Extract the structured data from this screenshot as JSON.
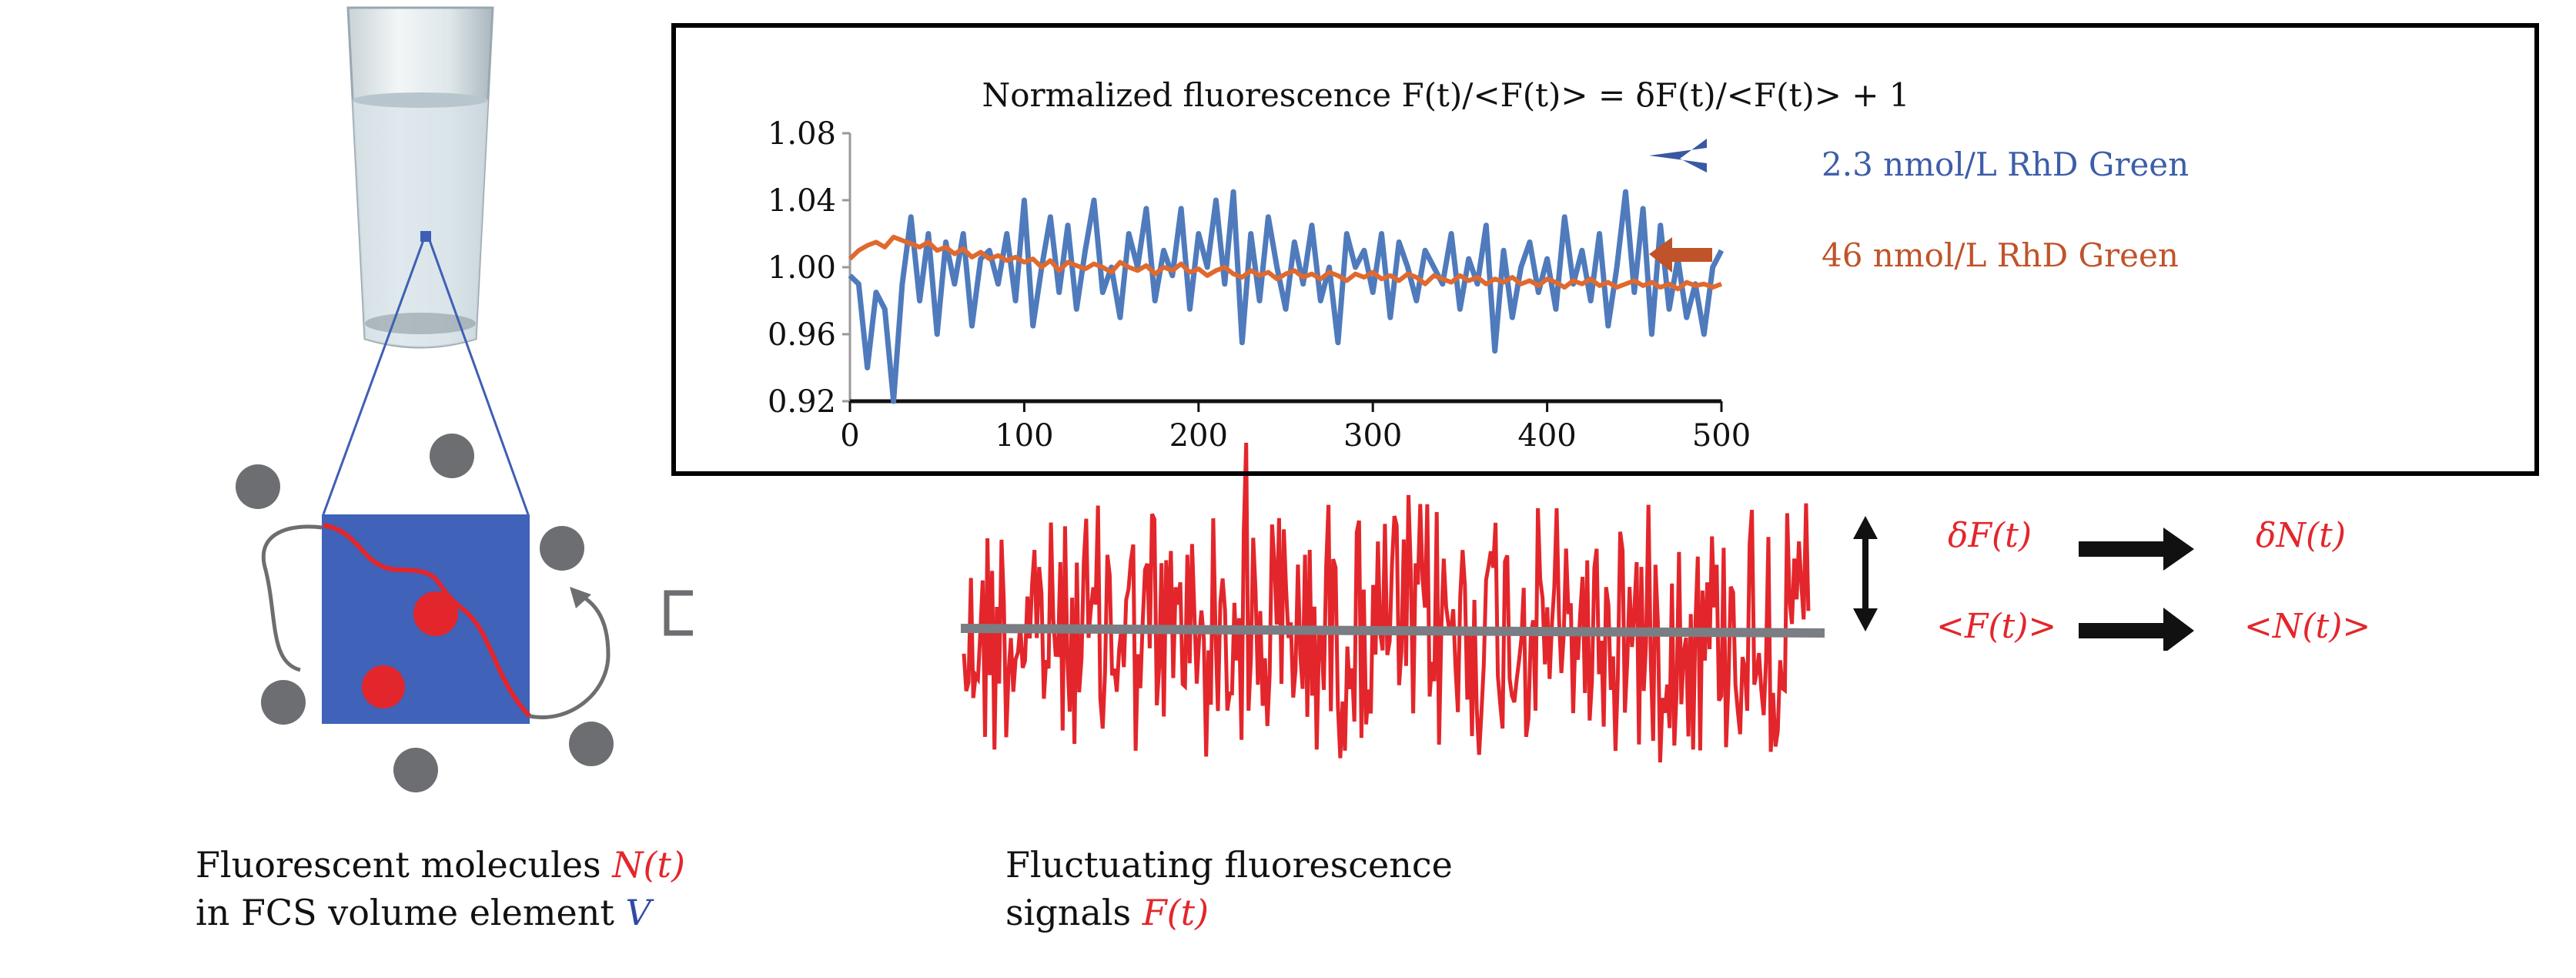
{
  "left_caption": {
    "line1_text": "Fluorescent molecules ",
    "line1_symbol": "N(t)",
    "line2_text": "in FCS volume element ",
    "line2_symbol": "V"
  },
  "middle_caption": {
    "line1_text": "Fluctuating  fluorescence",
    "line2_text": "signals ",
    "line2_symbol": "F(t)"
  },
  "relations": {
    "delta_f": "δF(t)",
    "delta_n": "δN(t)",
    "mean_f": "<F(t)>",
    "mean_n": "<N(t)>"
  },
  "colors": {
    "blue_series": "#4f7bbd",
    "orange_series": "#e0692e",
    "signal": "#e3262b",
    "volume": "#3f5fb5",
    "molecule": "#6d6e71"
  },
  "chart_data": {
    "type": "line",
    "title": "Normalized fluorescence F(t)/<F(t)> = δF(t)/<F(t)> + 1",
    "xlabel": "",
    "ylabel": "",
    "xlim": [
      0,
      500
    ],
    "ylim": [
      0.92,
      1.08
    ],
    "x_ticks": [
      "0",
      "100",
      "200",
      "300",
      "400",
      "500"
    ],
    "y_ticks": [
      "1.08",
      "1.04",
      "1.00",
      "0.96",
      "0.92"
    ],
    "x_step": 5,
    "legend_placement": "right",
    "series": [
      {
        "name": "2.3 nmol/L RhD Green",
        "color": "#4f7bbd",
        "values": [
          0.995,
          0.99,
          0.94,
          0.985,
          0.975,
          0.92,
          0.99,
          1.03,
          0.98,
          1.02,
          0.96,
          1.015,
          0.99,
          1.02,
          0.965,
          1.005,
          1.01,
          0.99,
          1.02,
          0.98,
          1.04,
          0.965,
          1.0,
          1.03,
          0.985,
          1.025,
          0.975,
          1.01,
          1.04,
          0.985,
          1.0,
          0.97,
          1.02,
          1.0,
          1.035,
          0.98,
          1.01,
          0.995,
          1.035,
          0.975,
          1.02,
          1.0,
          1.04,
          0.99,
          1.045,
          0.955,
          1.02,
          0.98,
          1.03,
          1.0,
          0.975,
          1.015,
          0.99,
          1.025,
          0.98,
          1.0,
          0.955,
          1.02,
          1.0,
          1.01,
          0.985,
          1.02,
          0.97,
          1.015,
          1.0,
          0.98,
          1.01,
          1.0,
          0.99,
          1.02,
          0.975,
          1.005,
          0.99,
          1.025,
          0.95,
          1.01,
          0.97,
          1.0,
          1.015,
          0.985,
          1.005,
          0.975,
          1.03,
          0.99,
          1.01,
          0.98,
          1.02,
          0.965,
          1.0,
          1.045,
          0.985,
          1.035,
          0.96,
          1.025,
          0.975,
          1.005,
          0.97,
          0.99,
          0.96,
          1.0,
          1.01
        ]
      },
      {
        "name": "46 nmol/L RhD Green",
        "color": "#e0692e",
        "values": [
          1.005,
          1.01,
          1.013,
          1.015,
          1.012,
          1.018,
          1.016,
          1.014,
          1.012,
          1.015,
          1.01,
          1.012,
          1.008,
          1.011,
          1.006,
          1.009,
          1.005,
          1.007,
          1.004,
          1.006,
          1.003,
          1.005,
          1.0,
          1.004,
          0.998,
          1.003,
          1.001,
          0.999,
          1.002,
          1.0,
          0.997,
          1.003,
          1.0,
          0.998,
          1.001,
          0.996,
          1.0,
          0.998,
          1.002,
          0.997,
          0.999,
          0.995,
          0.998,
          1.0,
          0.996,
          0.994,
          0.998,
          0.995,
          0.997,
          0.993,
          0.996,
          0.998,
          0.994,
          0.996,
          0.993,
          0.997,
          0.995,
          0.992,
          0.996,
          0.994,
          0.997,
          0.993,
          0.995,
          0.992,
          0.996,
          0.994,
          0.99,
          0.995,
          0.993,
          0.991,
          0.995,
          0.992,
          0.994,
          0.99,
          0.993,
          0.991,
          0.994,
          0.99,
          0.992,
          0.989,
          0.993,
          0.991,
          0.988,
          0.992,
          0.99,
          0.993,
          0.989,
          0.991,
          0.988,
          0.99,
          0.992,
          0.989,
          0.991,
          0.988,
          0.99,
          0.987,
          0.991,
          0.989,
          0.99,
          0.988,
          0.99
        ]
      }
    ]
  }
}
